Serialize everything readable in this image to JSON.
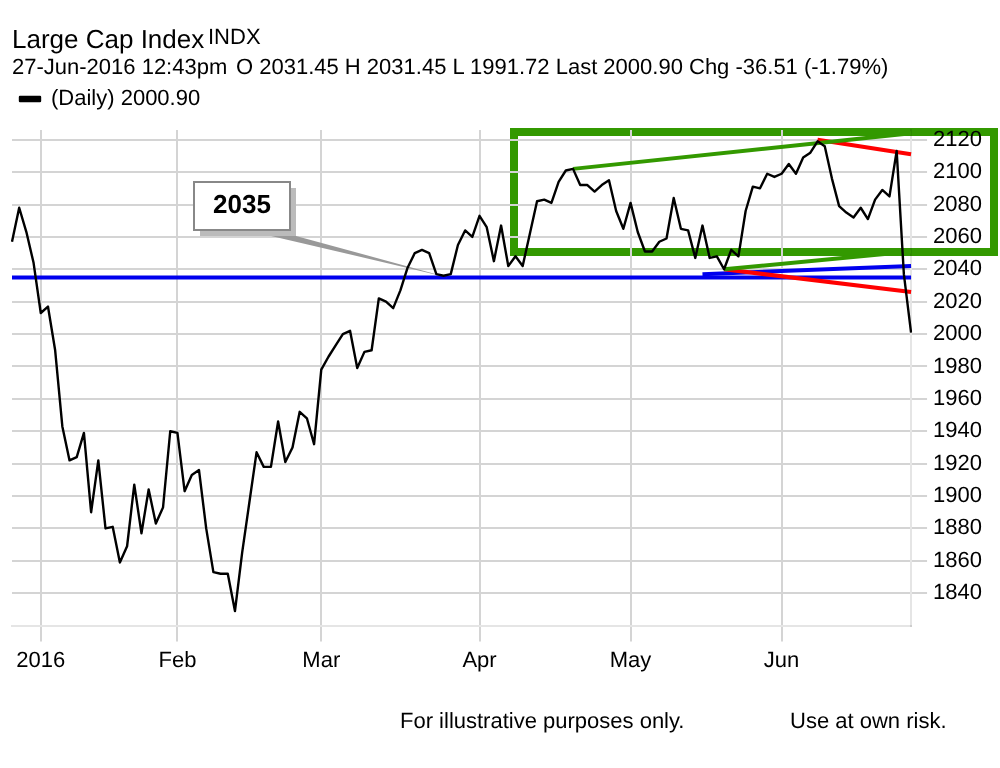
{
  "chart_data": {
    "type": "line",
    "annotations": [
      "Large Cap Index",
      "INDX",
      "27-Jun-2016 12:43pm",
      "O 2031.45 H 2031.45 L 1991.72 Last 2000.90 Chg -36.51 (-1.79%)",
      "For illustrative purposes only.",
      "Use at own risk."
    ],
    "categories": [
      null,
      null,
      null,
      null,
      "2016",
      null,
      null,
      null,
      null,
      null,
      null,
      null,
      null,
      null,
      null,
      null,
      null,
      null,
      null,
      null,
      null,
      null,
      null,
      "Feb",
      null,
      null,
      null,
      null,
      null,
      null,
      null,
      null,
      null,
      null,
      null,
      null,
      null,
      null,
      null,
      null,
      null,
      null,
      null,
      "Mar",
      null,
      null,
      null,
      null,
      null,
      null,
      null,
      null,
      null,
      null,
      null,
      null,
      null,
      null,
      null,
      null,
      null,
      null,
      null,
      null,
      null,
      "Apr",
      null,
      null,
      null,
      null,
      null,
      null,
      null,
      null,
      null,
      null,
      null,
      null,
      null,
      null,
      null,
      null,
      null,
      null,
      null,
      null,
      "May",
      null,
      null,
      null,
      null,
      null,
      null,
      null,
      null,
      null,
      null,
      null,
      null,
      null,
      null,
      null,
      null,
      null,
      null,
      null,
      null,
      "Jun",
      null,
      null,
      null,
      null,
      null,
      null,
      null,
      null,
      null,
      null,
      null,
      null,
      null,
      null,
      null,
      null,
      null,
      null
    ],
    "series": [
      {
        "name": "(Daily) 2000.90",
        "color": "#000000",
        "values": [
          2057,
          2078,
          2063,
          2044,
          2013,
          2017,
          1990,
          1943,
          1922,
          1924,
          1939,
          1890,
          1922,
          1880,
          1881,
          1859,
          1869,
          1907,
          1877,
          1904,
          1883,
          1893,
          1940,
          1939,
          1903,
          1913,
          1916,
          1880,
          1853,
          1852,
          1852,
          1829,
          1865,
          1896,
          1927,
          1918,
          1918,
          1946,
          1921,
          1930,
          1952,
          1948,
          1932,
          1978,
          1986,
          1993,
          2000,
          2002,
          1979,
          1989,
          1990,
          2022,
          2020,
          2016,
          2027,
          2041,
          2050,
          2052,
          2050,
          2037,
          2036,
          2037,
          2055,
          2064,
          2060,
          2073,
          2066,
          2045,
          2067,
          2042,
          2048,
          2042,
          2062,
          2082,
          2083,
          2081,
          2094,
          2101,
          2102,
          2092,
          2092,
          2088,
          2092,
          2095,
          2076,
          2065,
          2081,
          2063,
          2051,
          2051,
          2057,
          2059,
          2084,
          2065,
          2064,
          2047,
          2067,
          2047,
          2048,
          2040,
          2052,
          2048,
          2076,
          2091,
          2090,
          2099,
          2097,
          2099,
          2105,
          2099,
          2109,
          2112,
          2119,
          2116,
          2096,
          2079,
          2075,
          2072,
          2078,
          2071,
          2083,
          2089,
          2085,
          2113,
          2037,
          2000.9
        ]
      },
      {
        "type": "line",
        "color": "#339900",
        "values": [
          null,
          null,
          null,
          null,
          null,
          null,
          null,
          null,
          null,
          null,
          null,
          null,
          null,
          null,
          null,
          null,
          null,
          null,
          null,
          null,
          null,
          null,
          null,
          null,
          null,
          null,
          null,
          null,
          null,
          null,
          null,
          null,
          null,
          null,
          null,
          null,
          null,
          null,
          null,
          null,
          null,
          null,
          null,
          null,
          null,
          null,
          null,
          null,
          null,
          null,
          null,
          null,
          null,
          null,
          null,
          null,
          null,
          null,
          null,
          null,
          null,
          null,
          null,
          null,
          null,
          null,
          null,
          null,
          null,
          null,
          null,
          null,
          null,
          null,
          null,
          null,
          null,
          null,
          2102,
          null,
          null,
          null,
          null,
          null,
          null,
          null,
          null,
          null,
          null,
          null,
          null,
          null,
          null,
          null,
          null,
          null,
          null,
          null,
          null,
          null,
          null,
          null,
          null,
          null,
          null,
          null,
          null,
          null,
          null,
          null,
          null,
          null,
          null,
          null,
          null,
          null,
          null,
          null,
          null,
          null,
          null,
          null,
          null,
          null,
          null,
          2124
        ]
      },
      {
        "type": "line",
        "color": "#339900",
        "values": [
          null,
          null,
          null,
          null,
          null,
          null,
          null,
          null,
          null,
          null,
          null,
          null,
          null,
          null,
          null,
          null,
          null,
          null,
          null,
          null,
          null,
          null,
          null,
          null,
          null,
          null,
          null,
          null,
          null,
          null,
          null,
          null,
          null,
          null,
          null,
          null,
          null,
          null,
          null,
          null,
          null,
          null,
          null,
          null,
          null,
          null,
          null,
          null,
          null,
          null,
          null,
          null,
          null,
          null,
          null,
          null,
          null,
          null,
          null,
          null,
          null,
          null,
          null,
          null,
          null,
          null,
          null,
          null,
          null,
          null,
          null,
          null,
          null,
          null,
          null,
          null,
          null,
          null,
          null,
          null,
          null,
          null,
          null,
          null,
          null,
          null,
          null,
          null,
          null,
          null,
          null,
          null,
          null,
          null,
          null,
          null,
          null,
          null,
          null,
          2040,
          null,
          null,
          null,
          null,
          null,
          null,
          null,
          null,
          null,
          null,
          null,
          null,
          null,
          null,
          null,
          null,
          null,
          null,
          null,
          null,
          null,
          null,
          null,
          null,
          null,
          2051
        ]
      },
      {
        "type": "line",
        "color": "#ff0000",
        "values": [
          null,
          null,
          null,
          null,
          null,
          null,
          null,
          null,
          null,
          null,
          null,
          null,
          null,
          null,
          null,
          null,
          null,
          null,
          null,
          null,
          null,
          null,
          null,
          null,
          null,
          null,
          null,
          null,
          null,
          null,
          null,
          null,
          null,
          null,
          null,
          null,
          null,
          null,
          null,
          null,
          null,
          null,
          null,
          null,
          null,
          null,
          null,
          null,
          null,
          null,
          null,
          null,
          null,
          null,
          null,
          null,
          null,
          null,
          null,
          null,
          null,
          null,
          null,
          null,
          null,
          null,
          null,
          null,
          null,
          null,
          null,
          null,
          null,
          null,
          null,
          null,
          null,
          null,
          null,
          null,
          null,
          null,
          null,
          null,
          null,
          null,
          null,
          null,
          null,
          null,
          null,
          null,
          null,
          null,
          null,
          null,
          null,
          null,
          null,
          null,
          null,
          null,
          null,
          null,
          null,
          null,
          null,
          null,
          null,
          null,
          null,
          null,
          2120,
          null,
          null,
          null,
          null,
          null,
          null,
          null,
          null,
          null,
          null,
          null,
          null,
          2111
        ]
      },
      {
        "type": "line",
        "color": "#ff0000",
        "values": [
          null,
          null,
          null,
          null,
          null,
          null,
          null,
          null,
          null,
          null,
          null,
          null,
          null,
          null,
          null,
          null,
          null,
          null,
          null,
          null,
          null,
          null,
          null,
          null,
          null,
          null,
          null,
          null,
          null,
          null,
          null,
          null,
          null,
          null,
          null,
          null,
          null,
          null,
          null,
          null,
          null,
          null,
          null,
          null,
          null,
          null,
          null,
          null,
          null,
          null,
          null,
          null,
          null,
          null,
          null,
          null,
          null,
          null,
          null,
          null,
          null,
          null,
          null,
          null,
          null,
          null,
          null,
          null,
          null,
          null,
          null,
          null,
          null,
          null,
          null,
          null,
          null,
          null,
          null,
          null,
          null,
          null,
          null,
          null,
          null,
          null,
          null,
          null,
          null,
          null,
          null,
          null,
          null,
          null,
          null,
          null,
          null,
          null,
          null,
          2040,
          null,
          null,
          null,
          null,
          null,
          null,
          null,
          null,
          null,
          null,
          null,
          null,
          null,
          null,
          null,
          null,
          null,
          null,
          null,
          null,
          null,
          null,
          null,
          null,
          null,
          2026
        ]
      },
      {
        "type": "line",
        "color": "#0000ee",
        "values": [
          null,
          null,
          null,
          null,
          null,
          null,
          null,
          null,
          null,
          null,
          null,
          null,
          null,
          null,
          null,
          null,
          null,
          null,
          null,
          null,
          null,
          null,
          null,
          null,
          null,
          null,
          null,
          null,
          null,
          null,
          null,
          null,
          null,
          null,
          null,
          null,
          null,
          null,
          null,
          null,
          null,
          null,
          null,
          null,
          null,
          null,
          null,
          null,
          null,
          null,
          null,
          null,
          null,
          null,
          null,
          null,
          null,
          null,
          null,
          null,
          null,
          null,
          null,
          null,
          null,
          null,
          null,
          null,
          null,
          null,
          null,
          null,
          null,
          null,
          null,
          null,
          null,
          null,
          null,
          null,
          null,
          null,
          null,
          null,
          null,
          null,
          null,
          null,
          null,
          null,
          null,
          null,
          null,
          null,
          null,
          null,
          2037,
          null,
          null,
          null,
          null,
          null,
          null,
          null,
          null,
          null,
          null,
          null,
          null,
          null,
          null,
          null,
          null,
          null,
          null,
          null,
          null,
          null,
          null,
          null,
          null,
          null,
          null,
          null,
          null,
          2042
        ]
      }
    ],
    "ref_lines": [
      {
        "axis": "y",
        "value": 2035,
        "label": "2035",
        "color": "#0000ee"
      }
    ],
    "ylim": [
      1820,
      2126
    ],
    "yticks": [
      1840,
      1860,
      1880,
      1900,
      1920,
      1940,
      1960,
      1980,
      2000,
      2020,
      2040,
      2060,
      2080,
      2100,
      2120
    ],
    "grid": true,
    "legend": "top left",
    "marker": "none",
    "line_style": "solid"
  }
}
